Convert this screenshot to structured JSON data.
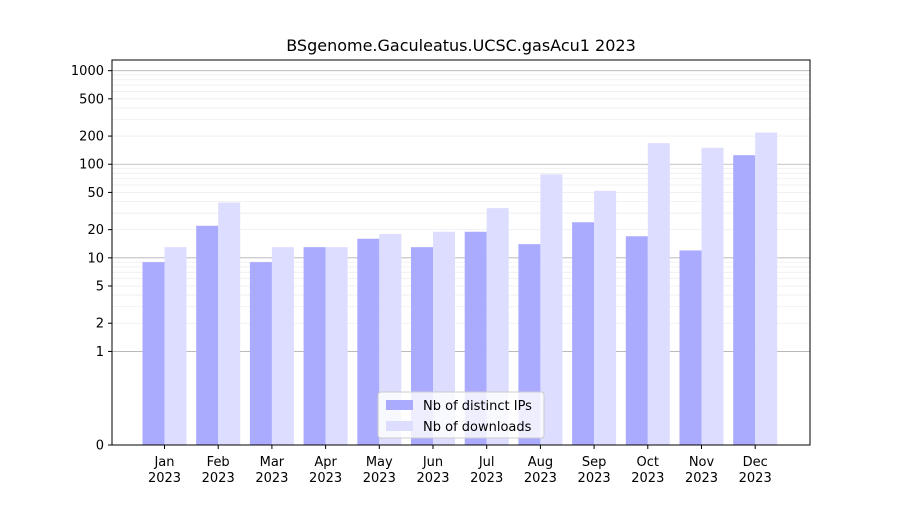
{
  "chart_data": {
    "type": "bar",
    "title": "BSgenome.Gaculeatus.UCSC.gasAcu1 2023",
    "xlabel": "",
    "ylabel": "",
    "y_scale": "symlog",
    "ylim": [
      0,
      1300
    ],
    "grid": "horizontal",
    "legend_position": "bottom-center",
    "categories": [
      [
        "Jan",
        "2023"
      ],
      [
        "Feb",
        "2023"
      ],
      [
        "Mar",
        "2023"
      ],
      [
        "Apr",
        "2023"
      ],
      [
        "May",
        "2023"
      ],
      [
        "Jun",
        "2023"
      ],
      [
        "Jul",
        "2023"
      ],
      [
        "Aug",
        "2023"
      ],
      [
        "Sep",
        "2023"
      ],
      [
        "Oct",
        "2023"
      ],
      [
        "Nov",
        "2023"
      ],
      [
        "Dec",
        "2023"
      ]
    ],
    "y_ticks": [
      {
        "value": 0,
        "label": "0"
      },
      {
        "value": 1,
        "label": "1"
      },
      {
        "value": 2,
        "label": "2"
      },
      {
        "value": 5,
        "label": "5"
      },
      {
        "value": 10,
        "label": "10"
      },
      {
        "value": 20,
        "label": "20"
      },
      {
        "value": 50,
        "label": "50"
      },
      {
        "value": 100,
        "label": "100"
      },
      {
        "value": 200,
        "label": "200"
      },
      {
        "value": 500,
        "label": "500"
      },
      {
        "value": 1000,
        "label": "1000"
      }
    ],
    "series": [
      {
        "name": "Nb of distinct IPs",
        "color": "#aaaaff",
        "values": [
          9,
          22,
          9,
          13,
          16,
          13,
          19,
          14,
          24,
          17,
          12,
          125
        ]
      },
      {
        "name": "Nb of downloads",
        "color": "#ddddff",
        "values": [
          13,
          39,
          13,
          13,
          18,
          19,
          34,
          78,
          52,
          168,
          150,
          218
        ]
      }
    ]
  }
}
